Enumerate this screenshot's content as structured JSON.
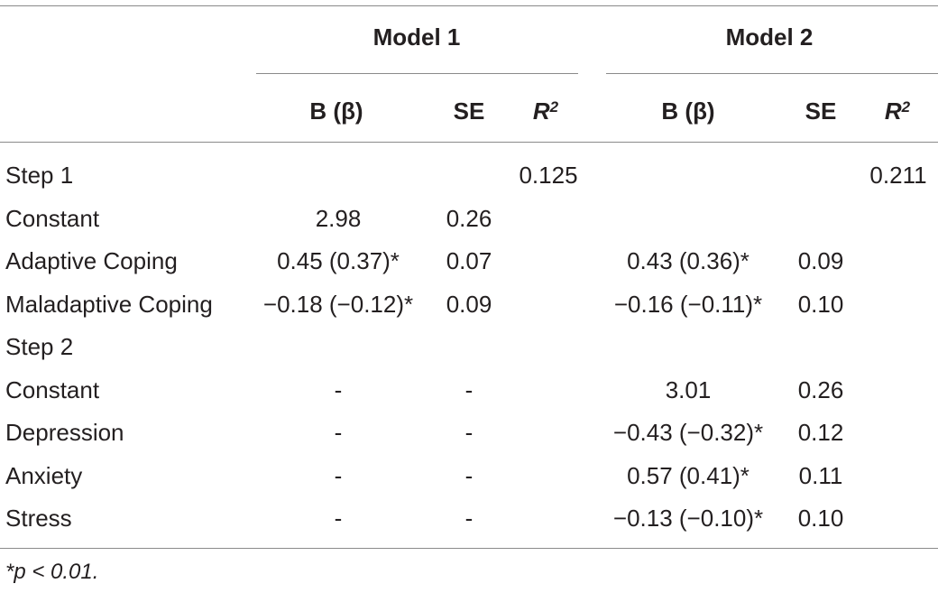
{
  "table": {
    "models": [
      {
        "title": "Model 1",
        "columns": [
          "B (β)",
          "SE",
          "R",
          "2"
        ]
      },
      {
        "title": "Model 2",
        "columns": [
          "B (β)",
          "SE",
          "R",
          "2"
        ]
      }
    ],
    "rows": [
      {
        "label": "Step 1",
        "m1_b": "",
        "m1_se": "",
        "m1_r2": "0.125",
        "m2_b": "",
        "m2_se": "",
        "m2_r2": "0.211"
      },
      {
        "label": "Constant",
        "m1_b": "2.98",
        "m1_se": "0.26",
        "m1_r2": "",
        "m2_b": "",
        "m2_se": "",
        "m2_r2": ""
      },
      {
        "label": "Adaptive Coping",
        "m1_b": "0.45 (0.37)*",
        "m1_se": "0.07",
        "m1_r2": "",
        "m2_b": "0.43 (0.36)*",
        "m2_se": "0.09",
        "m2_r2": ""
      },
      {
        "label": "Maladaptive Coping",
        "m1_b": "−0.18 (−0.12)*",
        "m1_se": "0.09",
        "m1_r2": "",
        "m2_b": "−0.16 (−0.11)*",
        "m2_se": "0.10",
        "m2_r2": ""
      },
      {
        "label": "Step 2",
        "m1_b": "",
        "m1_se": "",
        "m1_r2": "",
        "m2_b": "",
        "m2_se": "",
        "m2_r2": ""
      },
      {
        "label": "Constant",
        "m1_b": "-",
        "m1_se": "-",
        "m1_r2": "",
        "m2_b": "3.01",
        "m2_se": "0.26",
        "m2_r2": ""
      },
      {
        "label": "Depression",
        "m1_b": "-",
        "m1_se": "-",
        "m1_r2": "",
        "m2_b": "−0.43 (−0.32)*",
        "m2_se": "0.12",
        "m2_r2": ""
      },
      {
        "label": "Anxiety",
        "m1_b": "-",
        "m1_se": "-",
        "m1_r2": "",
        "m2_b": "0.57 (0.41)*",
        "m2_se": "0.11",
        "m2_r2": ""
      },
      {
        "label": "Stress",
        "m1_b": "-",
        "m1_se": "-",
        "m1_r2": "",
        "m2_b": "−0.13 (−0.10)*",
        "m2_se": "0.10",
        "m2_r2": ""
      }
    ],
    "footnote": "*p < 0.01."
  }
}
